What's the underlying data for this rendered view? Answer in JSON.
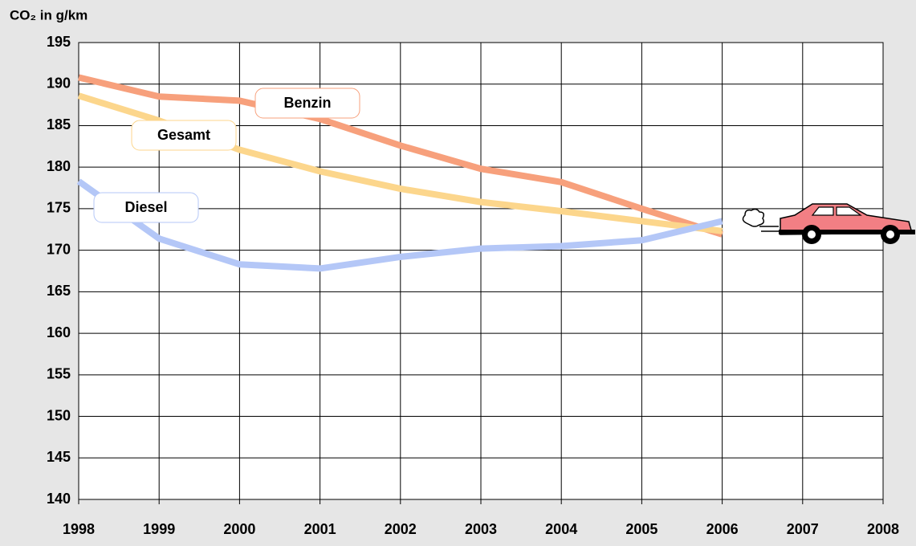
{
  "chart_data": {
    "type": "line",
    "y_axis_label": "CO₂ in g/km",
    "x": [
      1998,
      1999,
      2000,
      2001,
      2002,
      2003,
      2004,
      2005,
      2006
    ],
    "series": [
      {
        "name": "Benzin",
        "color": "#f7a07c",
        "values": [
          190.8,
          188.5,
          188.0,
          185.8,
          182.6,
          179.8,
          178.2,
          175.0,
          171.9
        ]
      },
      {
        "name": "Gesamt",
        "color": "#fcd68c",
        "values": [
          188.6,
          185.6,
          182.1,
          179.5,
          177.4,
          175.8,
          174.7,
          173.5,
          172.3
        ]
      },
      {
        "name": "Diesel",
        "color": "#b4c7f7",
        "values": [
          178.3,
          171.4,
          168.3,
          167.8,
          169.2,
          170.2,
          170.5,
          171.2,
          173.5
        ]
      }
    ],
    "xlim": [
      1998,
      2008
    ],
    "xticks": [
      1998,
      1999,
      2000,
      2001,
      2002,
      2003,
      2004,
      2005,
      2006,
      2007,
      2008
    ],
    "ylim": [
      140,
      195
    ],
    "yticks": [
      140,
      145,
      150,
      155,
      160,
      165,
      170,
      175,
      180,
      185,
      190,
      195
    ],
    "grid": true
  }
}
